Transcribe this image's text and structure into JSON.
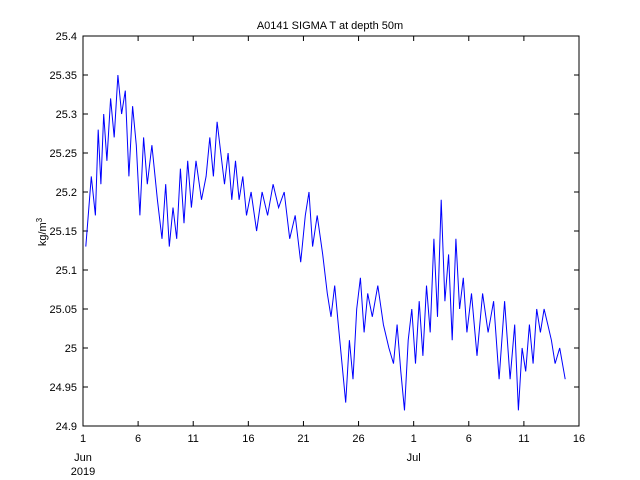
{
  "chart_data": {
    "type": "line",
    "title": "A0141 SIGMA T at depth 50m",
    "ylabel_base": "kg/m",
    "ylabel_sup": "3",
    "xlabel": "",
    "ylim": [
      24.9,
      25.4
    ],
    "yticks": [
      24.9,
      24.95,
      25,
      25.05,
      25.1,
      25.15,
      25.2,
      25.25,
      25.3,
      25.35,
      25.4
    ],
    "ytick_labels": [
      "24.9",
      "24.95",
      "25",
      "25.05",
      "25.1",
      "25.15",
      "25.2",
      "25.25",
      "25.3",
      "25.35",
      "25.4"
    ],
    "xlim": [
      "2019-06-01",
      "2019-07-16"
    ],
    "xticks": [
      "2019-06-01",
      "2019-06-06",
      "2019-06-11",
      "2019-06-16",
      "2019-06-21",
      "2019-06-26",
      "2019-07-01",
      "2019-07-06",
      "2019-07-11",
      "2019-07-16"
    ],
    "xtick_labels": [
      "1",
      "6",
      "11",
      "16",
      "21",
      "26",
      "1",
      "6",
      "11",
      "16"
    ],
    "month_labels": [
      {
        "date": "2019-06-01",
        "label": "Jun"
      },
      {
        "date": "2019-07-01",
        "label": "Jul"
      }
    ],
    "year_label": "2019",
    "grid": false,
    "line_color": "#0000ff",
    "series": [
      {
        "values": [
          [
            "2019-06-01",
            25.13
          ],
          [
            "2019-06-01",
            25.22
          ],
          [
            "2019-06-02",
            25.17
          ],
          [
            "2019-06-02",
            25.28
          ],
          [
            "2019-06-02",
            25.21
          ],
          [
            "2019-06-02",
            25.3
          ],
          [
            "2019-06-03",
            25.24
          ],
          [
            "2019-06-03",
            25.32
          ],
          [
            "2019-06-03",
            25.27
          ],
          [
            "2019-06-04",
            25.35
          ],
          [
            "2019-06-04",
            25.3
          ],
          [
            "2019-06-04",
            25.33
          ],
          [
            "2019-06-05",
            25.22
          ],
          [
            "2019-06-05",
            25.31
          ],
          [
            "2019-06-05",
            25.26
          ],
          [
            "2019-06-06",
            25.17
          ],
          [
            "2019-06-06",
            25.27
          ],
          [
            "2019-06-06",
            25.21
          ],
          [
            "2019-06-07",
            25.26
          ],
          [
            "2019-06-07",
            25.19
          ],
          [
            "2019-06-08",
            25.14
          ],
          [
            "2019-06-08",
            25.21
          ],
          [
            "2019-06-08",
            25.13
          ],
          [
            "2019-06-09",
            25.18
          ],
          [
            "2019-06-09",
            25.14
          ],
          [
            "2019-06-09",
            25.23
          ],
          [
            "2019-06-10",
            25.16
          ],
          [
            "2019-06-10",
            25.24
          ],
          [
            "2019-06-10",
            25.18
          ],
          [
            "2019-06-11",
            25.24
          ],
          [
            "2019-06-11",
            25.19
          ],
          [
            "2019-06-12",
            25.22
          ],
          [
            "2019-06-12",
            25.27
          ],
          [
            "2019-06-12",
            25.22
          ],
          [
            "2019-06-13",
            25.29
          ],
          [
            "2019-06-13",
            25.25
          ],
          [
            "2019-06-13",
            25.21
          ],
          [
            "2019-06-14",
            25.25
          ],
          [
            "2019-06-14",
            25.19
          ],
          [
            "2019-06-14",
            25.24
          ],
          [
            "2019-06-15",
            25.19
          ],
          [
            "2019-06-15",
            25.22
          ],
          [
            "2019-06-15",
            25.17
          ],
          [
            "2019-06-16",
            25.2
          ],
          [
            "2019-06-16",
            25.15
          ],
          [
            "2019-06-17",
            25.2
          ],
          [
            "2019-06-17",
            25.17
          ],
          [
            "2019-06-18",
            25.21
          ],
          [
            "2019-06-18",
            25.18
          ],
          [
            "2019-06-19",
            25.2
          ],
          [
            "2019-06-19",
            25.14
          ],
          [
            "2019-06-20",
            25.17
          ],
          [
            "2019-06-20",
            25.11
          ],
          [
            "2019-06-21",
            25.17
          ],
          [
            "2019-06-21",
            25.2
          ],
          [
            "2019-06-21",
            25.13
          ],
          [
            "2019-06-22",
            25.17
          ],
          [
            "2019-06-22",
            25.12
          ],
          [
            "2019-06-23",
            25.07
          ],
          [
            "2019-06-23",
            25.04
          ],
          [
            "2019-06-23",
            25.08
          ],
          [
            "2019-06-24",
            25.03
          ],
          [
            "2019-06-24",
            24.98
          ],
          [
            "2019-06-24",
            24.93
          ],
          [
            "2019-06-25",
            25.01
          ],
          [
            "2019-06-25",
            24.96
          ],
          [
            "2019-06-25",
            25.05
          ],
          [
            "2019-06-26",
            25.09
          ],
          [
            "2019-06-26",
            25.02
          ],
          [
            "2019-06-26",
            25.07
          ],
          [
            "2019-06-27",
            25.04
          ],
          [
            "2019-06-27",
            25.08
          ],
          [
            "2019-06-28",
            25.03
          ],
          [
            "2019-06-28",
            25.0
          ],
          [
            "2019-06-29",
            24.98
          ],
          [
            "2019-06-29",
            25.03
          ],
          [
            "2019-06-29",
            24.97
          ],
          [
            "2019-06-30",
            24.92
          ],
          [
            "2019-06-30",
            25.01
          ],
          [
            "2019-06-30",
            25.05
          ],
          [
            "2019-07-01",
            24.98
          ],
          [
            "2019-07-01",
            25.06
          ],
          [
            "2019-07-01",
            24.99
          ],
          [
            "2019-07-02",
            25.08
          ],
          [
            "2019-07-02",
            25.02
          ],
          [
            "2019-07-02",
            25.14
          ],
          [
            "2019-07-03",
            25.04
          ],
          [
            "2019-07-03",
            25.19
          ],
          [
            "2019-07-03",
            25.06
          ],
          [
            "2019-07-04",
            25.12
          ],
          [
            "2019-07-04",
            25.01
          ],
          [
            "2019-07-04",
            25.14
          ],
          [
            "2019-07-05",
            25.05
          ],
          [
            "2019-07-05",
            25.09
          ],
          [
            "2019-07-05",
            25.02
          ],
          [
            "2019-07-06",
            25.07
          ],
          [
            "2019-07-06",
            24.99
          ],
          [
            "2019-07-07",
            25.07
          ],
          [
            "2019-07-07",
            25.02
          ],
          [
            "2019-07-08",
            25.06
          ],
          [
            "2019-07-08",
            24.96
          ],
          [
            "2019-07-09",
            25.06
          ],
          [
            "2019-07-09",
            24.96
          ],
          [
            "2019-07-10",
            25.03
          ],
          [
            "2019-07-10",
            24.92
          ],
          [
            "2019-07-10",
            25.0
          ],
          [
            "2019-07-11",
            24.97
          ],
          [
            "2019-07-11",
            25.03
          ],
          [
            "2019-07-11",
            24.98
          ],
          [
            "2019-07-12",
            25.05
          ],
          [
            "2019-07-12",
            25.02
          ],
          [
            "2019-07-12",
            25.05
          ],
          [
            "2019-07-13",
            25.03
          ],
          [
            "2019-07-13",
            25.01
          ],
          [
            "2019-07-13",
            24.98
          ],
          [
            "2019-07-14",
            25.0
          ],
          [
            "2019-07-14",
            24.96
          ]
        ]
      }
    ]
  }
}
